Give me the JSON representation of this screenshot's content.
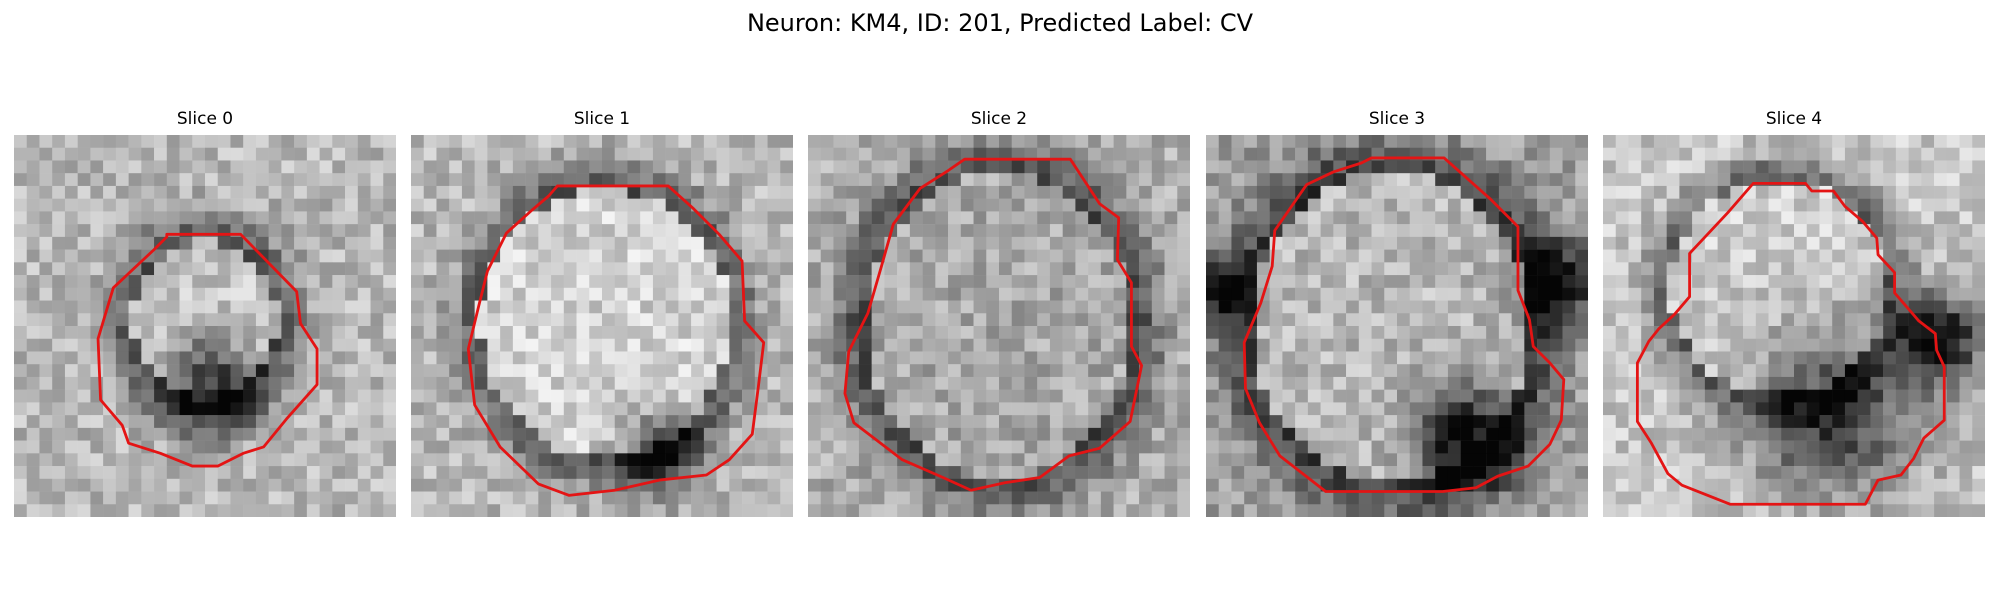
{
  "figure": {
    "title": "Neuron: KM4, ID: 201, Predicted Label: CV",
    "contour_color": "#e41414",
    "colormap": "gray"
  },
  "panels": [
    {
      "title": "Slice 0"
    },
    {
      "title": "Slice 1"
    },
    {
      "title": "Slice 2"
    },
    {
      "title": "Slice 3"
    },
    {
      "title": "Slice 4"
    }
  ]
}
